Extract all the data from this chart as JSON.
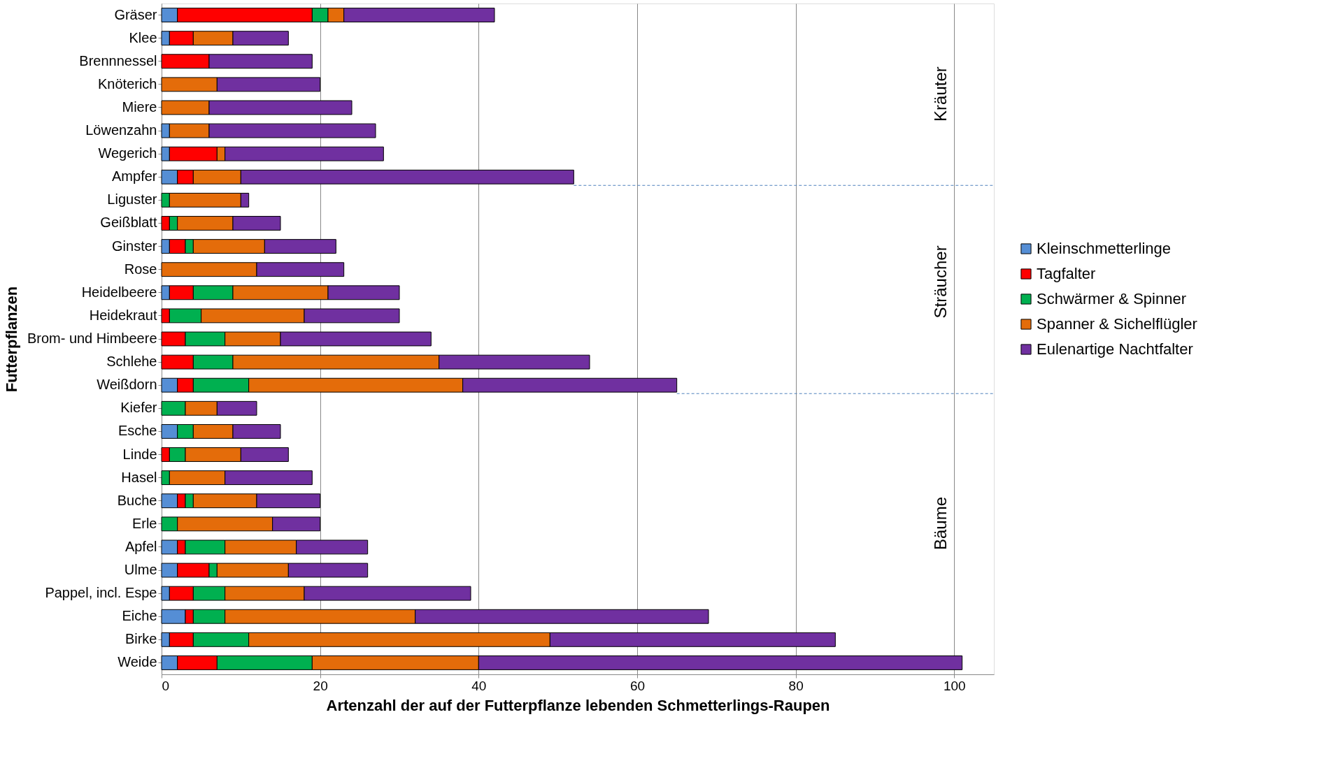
{
  "chart_data": {
    "type": "bar",
    "orientation": "horizontal",
    "stacked": true,
    "xlabel": "Artenzahl der auf der Futterpflanze lebenden Schmetterlings-Raupen",
    "ylabel": "Futterpflanzen",
    "categories": [
      "Gräser",
      "Klee",
      "Brennnessel",
      "Knöterich",
      "Miere",
      "Löwenzahn",
      "Wegerich",
      "Ampfer",
      "Liguster",
      "Geißblatt",
      "Ginster",
      "Rose",
      "Heidelbeere",
      "Heidekraut",
      "Brom- und Himbeere",
      "Schlehe",
      "Weißdorn",
      "Kiefer",
      "Esche",
      "Linde",
      "Hasel",
      "Buche",
      "Erle",
      "Apfel",
      "Ulme",
      "Pappel, incl. Espe",
      "Eiche",
      "Birke",
      "Weide"
    ],
    "series": [
      {
        "name": "Kleinschmetterlinge",
        "color": "#558ed5",
        "values": [
          2,
          1,
          0,
          0,
          0,
          1,
          1,
          2,
          0,
          0,
          1,
          0,
          1,
          0,
          0,
          0,
          2,
          0,
          2,
          0,
          0,
          2,
          0,
          2,
          2,
          1,
          3,
          1,
          2
        ]
      },
      {
        "name": "Tagfalter",
        "color": "#ff0000",
        "values": [
          17,
          3,
          6,
          0,
          0,
          0,
          6,
          2,
          0,
          1,
          2,
          0,
          3,
          1,
          3,
          4,
          2,
          0,
          0,
          1,
          0,
          1,
          0,
          1,
          4,
          3,
          1,
          3,
          5
        ]
      },
      {
        "name": "Schwärmer & Spinner",
        "color": "#00b050",
        "values": [
          2,
          0,
          0,
          0,
          0,
          0,
          0,
          0,
          1,
          1,
          1,
          0,
          5,
          4,
          5,
          5,
          7,
          3,
          2,
          2,
          1,
          1,
          2,
          5,
          1,
          4,
          4,
          7,
          12
        ]
      },
      {
        "name": "Spanner & Sichelflügler",
        "color": "#e46c0a",
        "values": [
          2,
          5,
          0,
          7,
          6,
          5,
          1,
          6,
          9,
          7,
          9,
          12,
          12,
          13,
          7,
          26,
          27,
          4,
          5,
          7,
          7,
          8,
          12,
          9,
          9,
          10,
          24,
          38,
          21
        ]
      },
      {
        "name": "Eulenartige Nachtfalter",
        "color": "#7030a0",
        "values": [
          19,
          7,
          13,
          13,
          18,
          21,
          20,
          42,
          1,
          6,
          9,
          11,
          9,
          12,
          19,
          19,
          27,
          5,
          6,
          6,
          11,
          8,
          6,
          9,
          10,
          21,
          37,
          36,
          61
        ]
      }
    ],
    "xlim": [
      0,
      105
    ],
    "xticks": [
      0,
      20,
      40,
      60,
      80,
      100
    ],
    "grid": "x",
    "legend": "right",
    "ref_lines": [
      {
        "axis": "y",
        "value": "Ampfer",
        "color": "#4f81bd",
        "line_style": "dashed"
      },
      {
        "axis": "y",
        "value": "Weißdorn",
        "color": "#4f81bd",
        "line_style": "dashed"
      }
    ],
    "annotations": [
      "Kräuter",
      "Sträucher",
      "Bäume"
    ]
  }
}
